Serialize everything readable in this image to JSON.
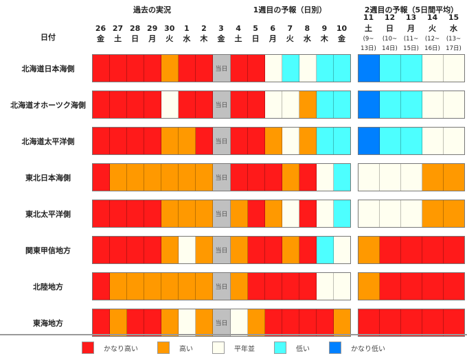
{
  "chart_data": {
    "type": "heatmap",
    "row_header": "日付",
    "section_labels": [
      "過去の実況",
      "1週目の予報（日別）",
      "2週目の予報（5日間平均）"
    ],
    "today_label": "当日",
    "daily_columns": [
      {
        "date": "26",
        "dow": "金"
      },
      {
        "date": "27",
        "dow": "土"
      },
      {
        "date": "28",
        "dow": "日"
      },
      {
        "date": "29",
        "dow": "月"
      },
      {
        "date": "30",
        "dow": "火"
      },
      {
        "date": "1",
        "dow": "水"
      },
      {
        "date": "2",
        "dow": "木"
      },
      {
        "date": "3",
        "dow": "金"
      },
      {
        "date": "4",
        "dow": "土"
      },
      {
        "date": "5",
        "dow": "日"
      },
      {
        "date": "6",
        "dow": "月"
      },
      {
        "date": "7",
        "dow": "火"
      },
      {
        "date": "8",
        "dow": "水"
      },
      {
        "date": "9",
        "dow": "木"
      },
      {
        "date": "10",
        "dow": "金"
      }
    ],
    "today_index": 7,
    "week2_columns": [
      {
        "date": "11",
        "dow": "土",
        "range1": "(9~",
        "range2": "13日)"
      },
      {
        "date": "12",
        "dow": "日",
        "range1": "(10~",
        "range2": "14日)"
      },
      {
        "date": "13",
        "dow": "月",
        "range1": "(11~",
        "range2": "15日)"
      },
      {
        "date": "14",
        "dow": "火",
        "range1": "(12~",
        "range2": "16日)"
      },
      {
        "date": "15",
        "dow": "水",
        "range1": "(13~",
        "range2": "17日)"
      }
    ],
    "categories": {
      "R": {
        "label": "かなり高い",
        "color": "#ff1a1a"
      },
      "O": {
        "label": "高い",
        "color": "#ff9900"
      },
      "P": {
        "label": "平年並",
        "color": "#fffff0"
      },
      "C": {
        "label": "低い",
        "color": "#4dffff"
      },
      "B": {
        "label": "かなり低い",
        "color": "#0080ff"
      }
    },
    "legend_order": [
      "R",
      "O",
      "P",
      "C",
      "B"
    ],
    "rows": [
      {
        "region": "北海道日本海側",
        "daily": "RRRRORRTRRPCPCC",
        "week2": "BCCPP"
      },
      {
        "region": "北海道オホーツク海側",
        "daily": "RRRRPRRTRRPPOCC",
        "week2": "BCCPP"
      },
      {
        "region": "北海道太平洋側",
        "daily": "RRRROORTRROPOCC",
        "week2": "BCCPP"
      },
      {
        "region": "東北日本海側",
        "daily": "ROOOOOOTRRRORPC",
        "week2": "PPPOO"
      },
      {
        "region": "東北太平洋側",
        "daily": "RRRROOOTOROPRPC",
        "week2": "PPPOO"
      },
      {
        "region": "関東甲信地方",
        "daily": "RRRROPOTORRORCP",
        "week2": "ORRRR"
      },
      {
        "region": "北陸地方",
        "daily": "ROOOOOOTORRRRPP",
        "week2": "ORRRR"
      },
      {
        "region": "東海地方",
        "daily": "RORROPOTPORRRRO",
        "week2": "RRRRR"
      }
    ]
  }
}
